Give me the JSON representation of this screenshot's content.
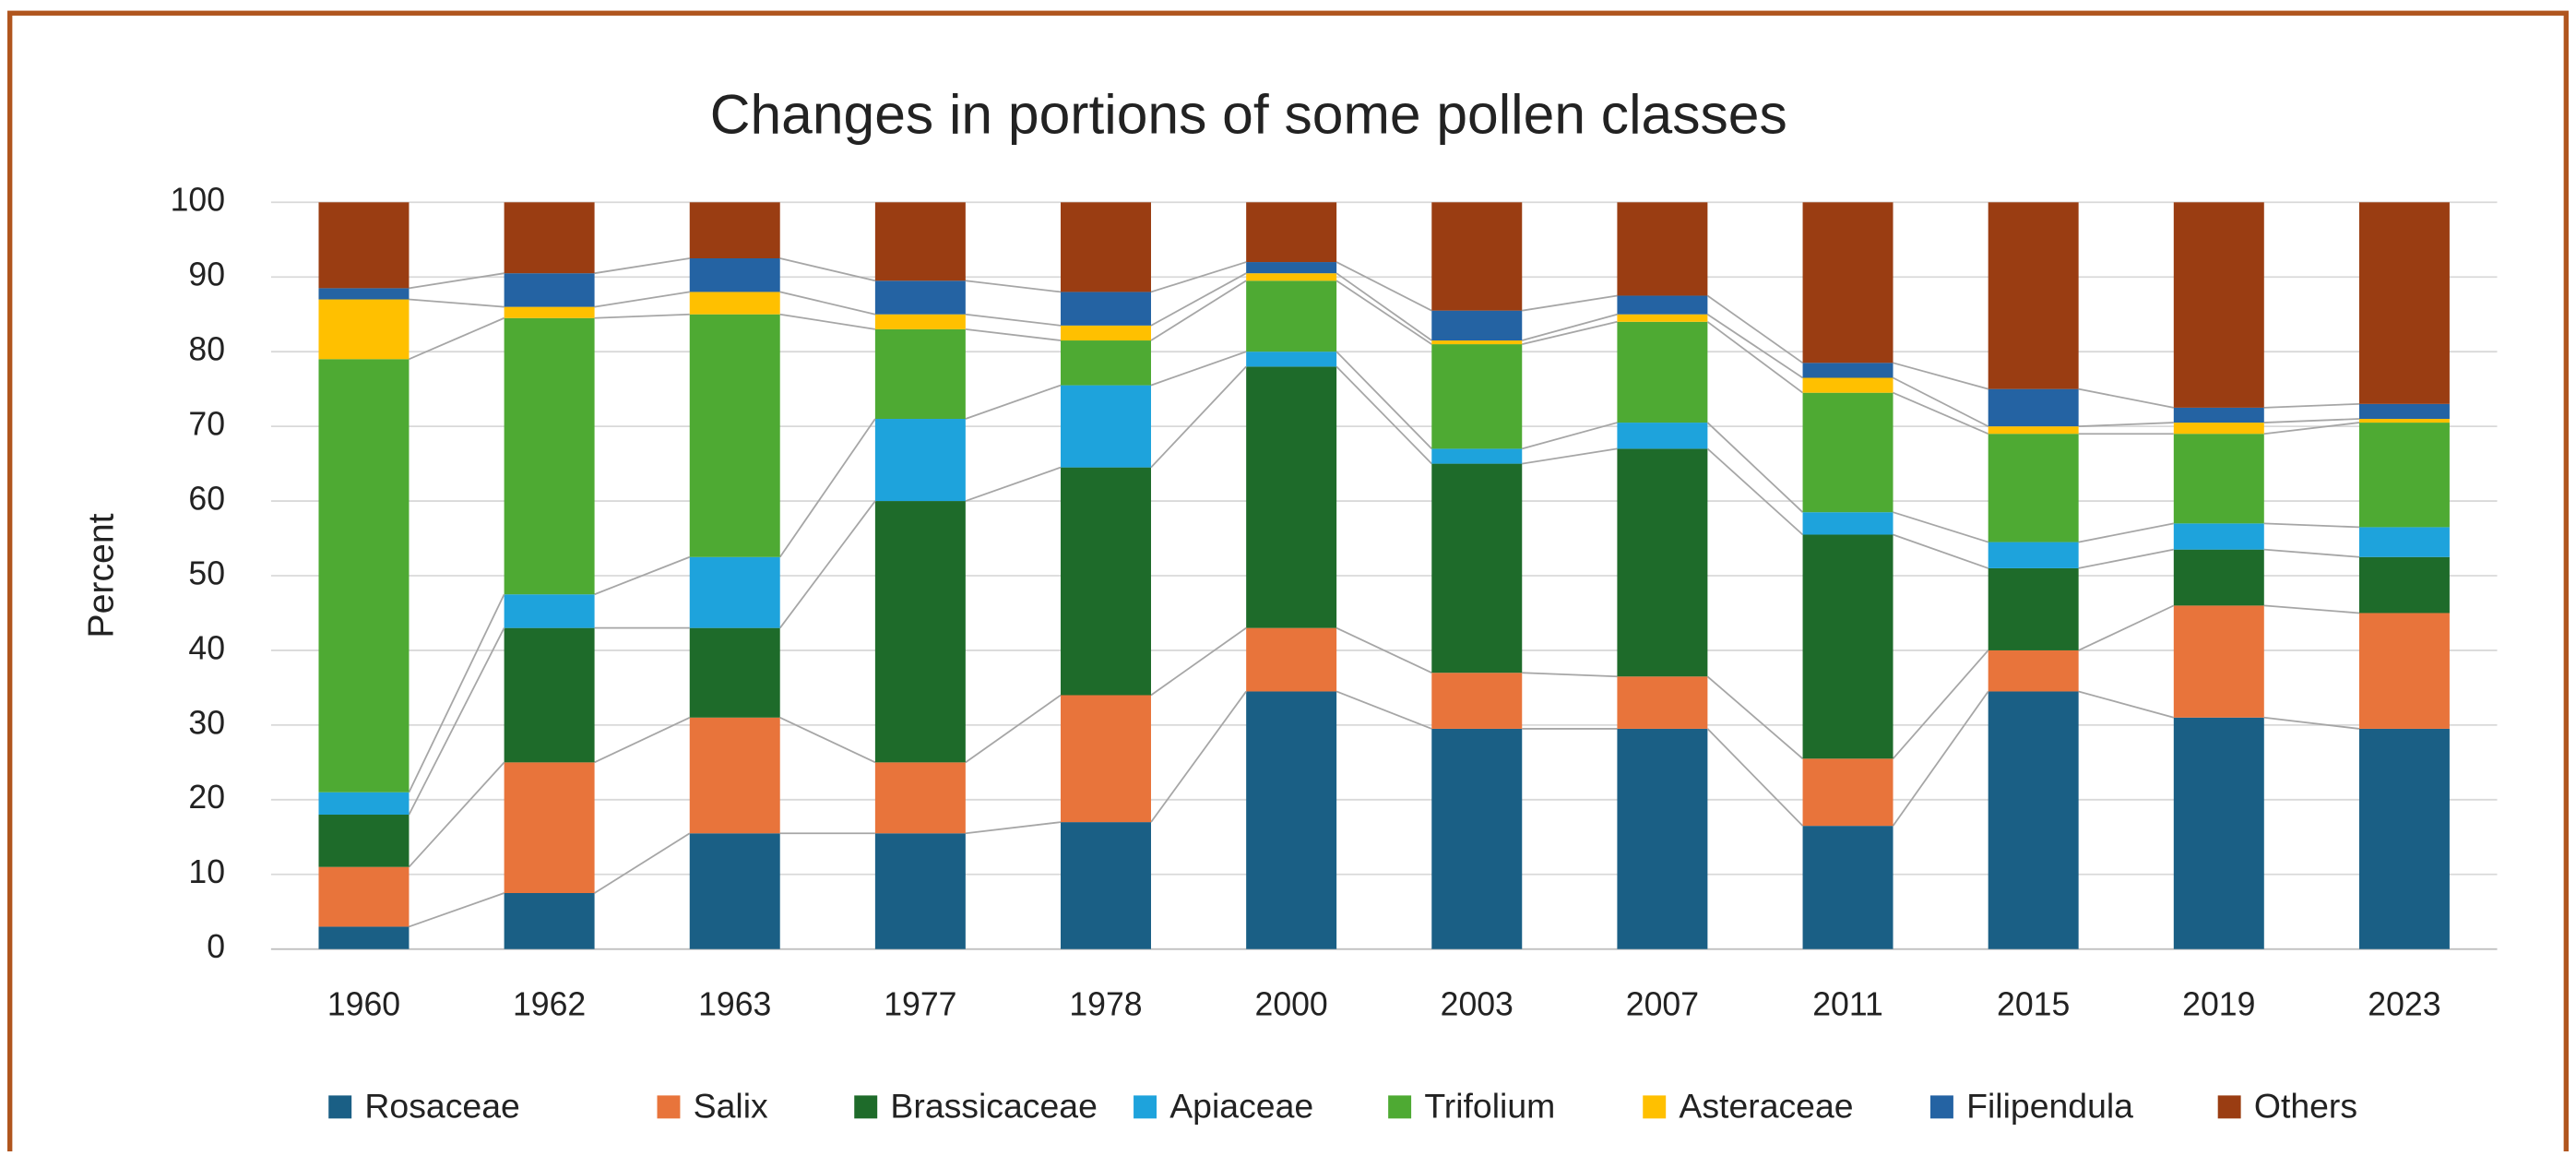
{
  "chart_data": {
    "type": "stacked_bar",
    "title": "Changes in portions of some pollen classes",
    "y_label": "Percent",
    "categories": [
      "1960",
      "1962",
      "1963",
      "1977",
      "1978",
      "2000",
      "2003",
      "2007",
      "2011",
      "2015",
      "2019",
      "2023"
    ],
    "series": [
      {
        "name": "Rosaceae",
        "color": "#1a5f85",
        "values": [
          3,
          7.5,
          15.5,
          15.5,
          17,
          34.5,
          29.5,
          29.5,
          16.5,
          34.5,
          31,
          29.5
        ]
      },
      {
        "name": "Salix",
        "color": "#e8743b",
        "values": [
          8,
          17.5,
          15.5,
          9.5,
          17,
          8.5,
          7.5,
          7,
          9,
          5.5,
          15,
          15.5
        ]
      },
      {
        "name": "Brassicaceae",
        "color": "#1e6b2a",
        "values": [
          7,
          18,
          12,
          35,
          30.5,
          35,
          28,
          30.5,
          30,
          11,
          7.5,
          7.5
        ]
      },
      {
        "name": "Apiaceae",
        "color": "#1ea3dc",
        "values": [
          3,
          4.5,
          9.5,
          11,
          11,
          2,
          2,
          3.5,
          3,
          3.5,
          3.5,
          4
        ]
      },
      {
        "name": "Trifolium",
        "color": "#4eaa33",
        "values": [
          58,
          37,
          32.5,
          12,
          6,
          9.5,
          14,
          13.5,
          16,
          14.5,
          12,
          14
        ]
      },
      {
        "name": "Asteraceae",
        "color": "#ffc000",
        "values": [
          8,
          1.5,
          3,
          2,
          2,
          1,
          0.5,
          1,
          2,
          1,
          1.5,
          0.5
        ]
      },
      {
        "name": "Filipendula",
        "color": "#2463a3",
        "values": [
          1.5,
          4.5,
          4.5,
          4.5,
          4.5,
          1.5,
          4,
          2.5,
          2,
          5,
          2,
          2
        ]
      },
      {
        "name": "Others",
        "color": "#9a3d12",
        "values": [
          11.5,
          9.5,
          7.5,
          10.5,
          12,
          8,
          14.5,
          12.5,
          21.5,
          25,
          27.5,
          27
        ]
      }
    ],
    "ylim": [
      0,
      100
    ],
    "yticks": [
      0,
      10,
      20,
      30,
      40,
      50,
      60,
      70,
      80,
      90,
      100
    ],
    "grid": true,
    "legend": "bottom"
  }
}
